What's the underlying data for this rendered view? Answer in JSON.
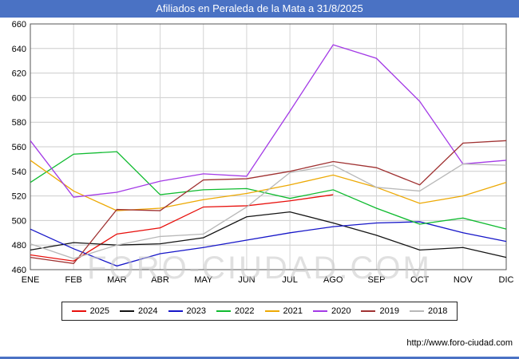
{
  "header": {
    "title": "Afiliados en Peraleda de la Mata a 31/8/2025",
    "bg_color": "#4a72c4"
  },
  "watermark": "FORO-CIUDAD.COM",
  "footer": {
    "url": "http://www.foro-ciudad.com"
  },
  "chart_data": {
    "type": "line",
    "title": "Afiliados en Peraleda de la Mata a 31/8/2025",
    "categories": [
      "ENE",
      "FEB",
      "MAR",
      "ABR",
      "MAY",
      "JUN",
      "JUL",
      "AGO",
      "SEP",
      "OCT",
      "NOV",
      "DIC"
    ],
    "ylim": [
      460,
      660
    ],
    "ytick_step": 20,
    "grid": true,
    "legend_position": "bottom",
    "series": [
      {
        "name": "2025",
        "color": "#e8100c",
        "values": [
          472,
          467,
          489,
          494,
          511,
          512,
          516,
          521
        ]
      },
      {
        "name": "2024",
        "color": "#141414",
        "values": [
          476,
          482,
          480,
          481,
          486,
          503,
          507,
          498,
          488,
          476,
          478,
          470
        ]
      },
      {
        "name": "2023",
        "color": "#1616c8",
        "values": [
          493,
          477,
          463,
          473,
          478,
          484,
          490,
          495,
          498,
          499,
          490,
          483
        ]
      },
      {
        "name": "2022",
        "color": "#10bb30",
        "values": [
          531,
          554,
          556,
          521,
          525,
          526,
          518,
          525,
          510,
          497,
          502,
          493
        ]
      },
      {
        "name": "2021",
        "color": "#eda904",
        "values": [
          549,
          524,
          508,
          510,
          517,
          522,
          529,
          537,
          527,
          514,
          520,
          531
        ]
      },
      {
        "name": "2020",
        "color": "#a33ae6",
        "values": [
          565,
          519,
          523,
          532,
          538,
          536,
          589,
          643,
          632,
          597,
          546,
          549
        ]
      },
      {
        "name": "2019",
        "color": "#a03232",
        "values": [
          470,
          465,
          509,
          508,
          533,
          534,
          540,
          548,
          543,
          529,
          563,
          565
        ]
      },
      {
        "name": "2018",
        "color": "#b8b8b8",
        "values": [
          481,
          469,
          480,
          487,
          489,
          511,
          539,
          545,
          527,
          524,
          546,
          545
        ]
      }
    ]
  }
}
